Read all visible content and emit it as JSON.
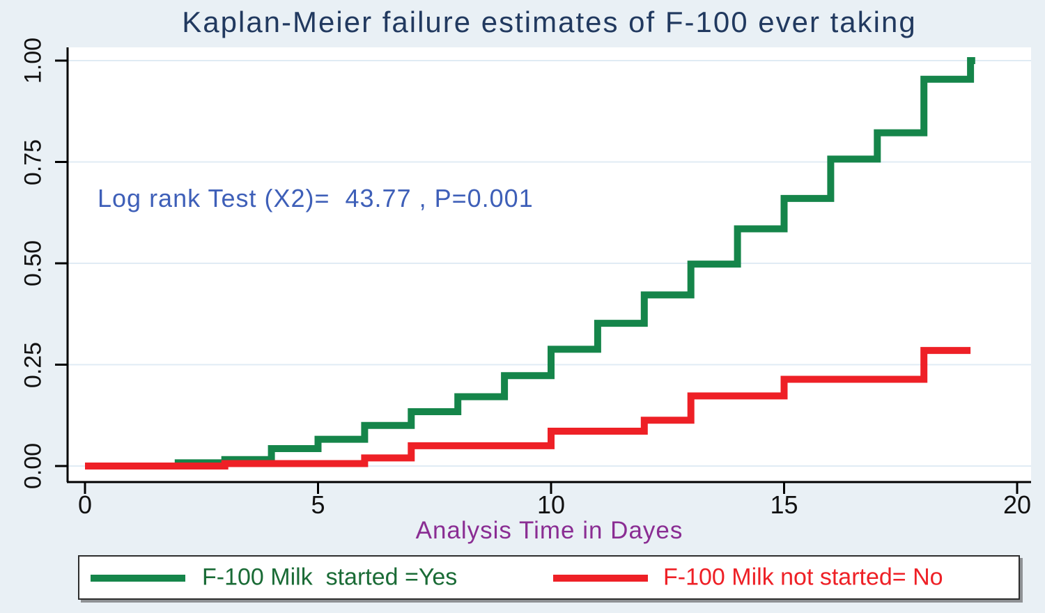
{
  "title": "Kaplan-Meier failure estimates of F-100 ever taking",
  "annotation": "Log rank Test (X2)=  43.77 , P=0.001",
  "axes": {
    "x_label": "Analysis Time in Dayes",
    "x_ticks": [
      "0",
      "5",
      "10",
      "15",
      "20"
    ],
    "y_ticks": [
      "0.00",
      "0.25",
      "0.50",
      "0.75",
      "1.00"
    ]
  },
  "legend": {
    "items": [
      {
        "id": "yes",
        "label": "F-100 Milk  started =Yes",
        "swatch_color": "#15854a",
        "text_color": "#1a6b36"
      },
      {
        "id": "no",
        "label": "F-100 Milk not started= No",
        "swatch_color": "#ee2026",
        "text_color": "#ee2026"
      }
    ]
  },
  "colors": {
    "page_background": "#e9f0f5",
    "plot_background": "#ffffff",
    "gridline": "#e0ebf4",
    "axis": "#000000",
    "title": "#21395f",
    "annotation": "#3e5fb8",
    "x_label": "#8a2d93",
    "tick_label": "#111111",
    "series_yes": "#15854a",
    "series_no": "#ee2026"
  },
  "chart_data": {
    "type": "line",
    "subtype": "step-kaplan-meier-failure",
    "title": "Kaplan-Meier failure estimates of F-100 ever taking",
    "xlabel": "Analysis Time in Dayes",
    "ylabel": "",
    "xlim": [
      0,
      20.3
    ],
    "ylim": [
      0,
      1.0
    ],
    "x_tick_values": [
      0,
      5,
      10,
      15,
      20
    ],
    "y_tick_values": [
      0.0,
      0.25,
      0.5,
      0.75,
      1.0
    ],
    "grid": "horizontal",
    "legend_position": "bottom",
    "annotation": {
      "text": "Log rank Test (X2)=  43.77 , P=0.001",
      "x": 0.3,
      "y": 0.66
    },
    "series": [
      {
        "name": "F-100 Milk  started =Yes",
        "color": "#15854a",
        "steps": [
          [
            0,
            0.0
          ],
          [
            2,
            0.008
          ],
          [
            3,
            0.016
          ],
          [
            4,
            0.043
          ],
          [
            5,
            0.066
          ],
          [
            6,
            0.1
          ],
          [
            7,
            0.134
          ],
          [
            8,
            0.171
          ],
          [
            9,
            0.223
          ],
          [
            10,
            0.288
          ],
          [
            11,
            0.352
          ],
          [
            12,
            0.422
          ],
          [
            13,
            0.498
          ],
          [
            14,
            0.585
          ],
          [
            15,
            0.66
          ],
          [
            16,
            0.757
          ],
          [
            17,
            0.822
          ],
          [
            18,
            0.954
          ],
          [
            19,
            1.0
          ]
        ],
        "end_time": 19.1
      },
      {
        "name": "F-100 Milk not started= No",
        "color": "#ee2026",
        "steps": [
          [
            0,
            0.0
          ],
          [
            3,
            0.006
          ],
          [
            6,
            0.02
          ],
          [
            7,
            0.05
          ],
          [
            10,
            0.086
          ],
          [
            12,
            0.113
          ],
          [
            13,
            0.173
          ],
          [
            15,
            0.214
          ],
          [
            18,
            0.285
          ]
        ],
        "end_time": 19.0
      }
    ]
  }
}
